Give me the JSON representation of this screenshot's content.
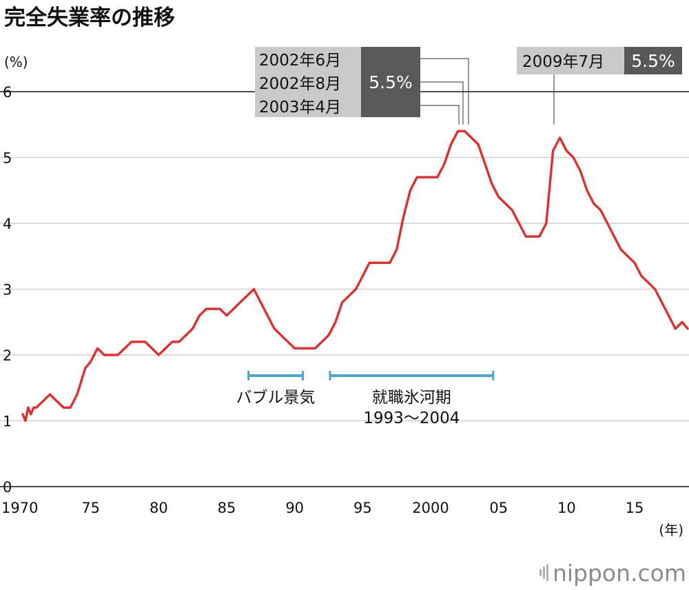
{
  "chart_data": {
    "type": "line",
    "title": "完全失業率の推移",
    "ylabel": "(%)",
    "xlabel": "(年)",
    "ylim": [
      0,
      6
    ],
    "xlim": [
      1970,
      2018.9
    ],
    "yticks": [
      0,
      1,
      2,
      3,
      4,
      5,
      6
    ],
    "xticks": [
      {
        "value": 1970,
        "label": "1970"
      },
      {
        "value": 1975,
        "label": "75"
      },
      {
        "value": 1980,
        "label": "80"
      },
      {
        "value": 1985,
        "label": "85"
      },
      {
        "value": 1990,
        "label": "90"
      },
      {
        "value": 1995,
        "label": "95"
      },
      {
        "value": 2000,
        "label": "2000"
      },
      {
        "value": 2005,
        "label": "05"
      },
      {
        "value": 2010,
        "label": "10"
      },
      {
        "value": 2015,
        "label": "15"
      }
    ],
    "series": [
      {
        "name": "完全失業率",
        "color": "#d93434",
        "x": [
          1970,
          1970.2,
          1970.4,
          1970.6,
          1970.8,
          1971,
          1971.5,
          1972,
          1972.5,
          1973,
          1973.5,
          1974,
          1974.3,
          1974.6,
          1975,
          1975.5,
          1976,
          1976.5,
          1977,
          1977.5,
          1978,
          1978.5,
          1979,
          1979.5,
          1980,
          1980.5,
          1981,
          1981.5,
          1982,
          1982.5,
          1983,
          1983.5,
          1984,
          1984.5,
          1985,
          1985.5,
          1986,
          1986.5,
          1987,
          1987.5,
          1988,
          1988.5,
          1989,
          1989.5,
          1990,
          1990.5,
          1991,
          1991.5,
          1992,
          1992.5,
          1993,
          1993.5,
          1994,
          1994.5,
          1995,
          1995.5,
          1996,
          1996.5,
          1997,
          1997.5,
          1998,
          1998.5,
          1999,
          1999.5,
          2000,
          2000.5,
          2001,
          2001.5,
          2002,
          2002.5,
          2003,
          2003.5,
          2004,
          2004.5,
          2005,
          2005.5,
          2006,
          2006.5,
          2007,
          2007.5,
          2008,
          2008.5,
          2009,
          2009.5,
          2010,
          2010.5,
          2011,
          2011.5,
          2012,
          2012.5,
          2013,
          2013.5,
          2014,
          2014.5,
          2015,
          2015.5,
          2016,
          2016.5,
          2017,
          2017.5,
          2018,
          2018.5,
          2018.9
        ],
        "values": [
          1.1,
          1.0,
          1.2,
          1.1,
          1.2,
          1.2,
          1.3,
          1.4,
          1.3,
          1.2,
          1.2,
          1.4,
          1.6,
          1.8,
          1.9,
          2.1,
          2.0,
          2.0,
          2.0,
          2.1,
          2.2,
          2.2,
          2.2,
          2.1,
          2.0,
          2.1,
          2.2,
          2.2,
          2.3,
          2.4,
          2.6,
          2.7,
          2.7,
          2.7,
          2.6,
          2.7,
          2.8,
          2.9,
          3.0,
          2.8,
          2.6,
          2.4,
          2.3,
          2.2,
          2.1,
          2.1,
          2.1,
          2.1,
          2.2,
          2.3,
          2.5,
          2.8,
          2.9,
          3.0,
          3.2,
          3.4,
          3.4,
          3.4,
          3.4,
          3.6,
          4.1,
          4.5,
          4.7,
          4.7,
          4.7,
          4.7,
          4.9,
          5.2,
          5.4,
          5.4,
          5.3,
          5.2,
          4.9,
          4.6,
          4.4,
          4.3,
          4.2,
          4.0,
          3.8,
          3.8,
          3.8,
          4.0,
          5.1,
          5.3,
          5.1,
          5.0,
          4.8,
          4.5,
          4.3,
          4.2,
          4.0,
          3.8,
          3.6,
          3.5,
          3.4,
          3.2,
          3.1,
          3.0,
          2.8,
          2.6,
          2.4,
          2.5,
          2.4
        ]
      }
    ],
    "peaks": [
      {
        "dates": [
          "2002年6月",
          "2002年8月",
          "2003年4月"
        ],
        "value": "5.5%"
      },
      {
        "dates": [
          "2009年7月"
        ],
        "value": "5.5%"
      }
    ],
    "periods": [
      {
        "label": "バブル景気",
        "sublabel": "",
        "start": 1986.6,
        "end": 1990.6
      },
      {
        "label": "就職氷河期",
        "sublabel": "1993〜2004",
        "start": 1992.6,
        "end": 2004.6
      }
    ],
    "period_color": "#4fa6c8",
    "source": "nippon.com"
  }
}
